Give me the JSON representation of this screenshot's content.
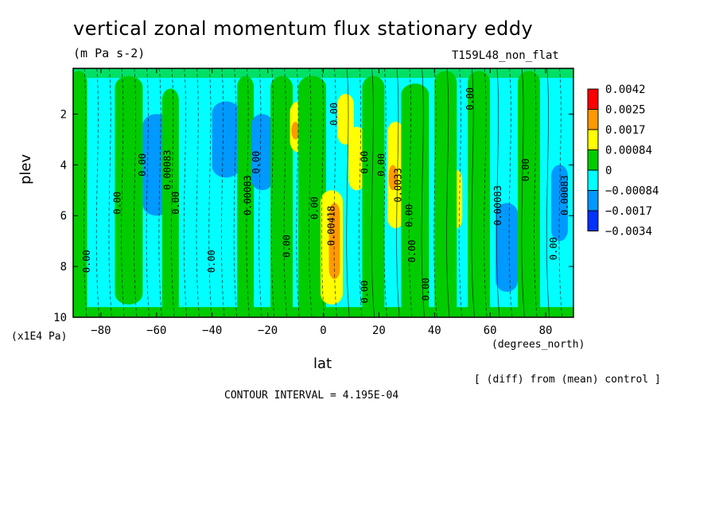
{
  "header": {
    "title": "vertical zonal momentum flux stationary eddy",
    "units": "(m Pa s-2)",
    "run_label": "T159L48_non_flat"
  },
  "footer": {
    "diff_note": "[ (diff) from (mean) control ]",
    "contour_interval": "CONTOUR INTERVAL = 4.195E-04"
  },
  "chart_data": {
    "type": "heatmap",
    "title": "vertical zonal momentum flux stationary eddy",
    "xlabel": "lat",
    "xunit": "(degrees_north)",
    "ylabel": "plev",
    "yunit": "(x1E4 Pa)",
    "xlim": [
      -90,
      90
    ],
    "ylim": [
      10,
      0.2
    ],
    "x_ticks": [
      -80,
      -60,
      -40,
      -20,
      0,
      20,
      40,
      60,
      80
    ],
    "x_tick_labels": [
      "−80",
      "−60",
      "−40",
      "−20",
      "0",
      "20",
      "40",
      "60",
      "80"
    ],
    "y_ticks": [
      2,
      4,
      6,
      8,
      10
    ],
    "y_tick_labels": [
      "2",
      "4",
      "6",
      "8",
      "10"
    ],
    "legend": {
      "position": "right",
      "labels": [
        "0.0042",
        "0.0025",
        "0.0017",
        "0.00084",
        "0",
        "−0.00084",
        "−0.0017",
        "−0.0034"
      ],
      "colors": [
        "#ff0000",
        "#ff9900",
        "#ffff00",
        "#00cc00",
        "#00ffff",
        "#0099ff",
        "#0033ff"
      ]
    },
    "contour_labels": [
      {
        "text": "0.00",
        "lat": -84,
        "p": 7.8
      },
      {
        "text": "0.00",
        "lat": -73,
        "p": 5.5
      },
      {
        "text": "0.00",
        "lat": -64,
        "p": 4.0
      },
      {
        "text": "0.00083",
        "lat": -55,
        "p": 4.2
      },
      {
        "text": "0.00",
        "lat": -52,
        "p": 5.5
      },
      {
        "text": "0.00",
        "lat": -39,
        "p": 7.8
      },
      {
        "text": "0.00083",
        "lat": -26,
        "p": 5.2
      },
      {
        "text": "0.00",
        "lat": -23,
        "p": 3.9
      },
      {
        "text": "0.00",
        "lat": -12,
        "p": 7.2
      },
      {
        "text": "0.00",
        "lat": -2,
        "p": 5.7
      },
      {
        "text": "0.00418",
        "lat": 4,
        "p": 6.4
      },
      {
        "text": "0.00",
        "lat": 5,
        "p": 2.0
      },
      {
        "text": "0.00",
        "lat": 16,
        "p": 3.9
      },
      {
        "text": "0.00",
        "lat": 16,
        "p": 9.0
      },
      {
        "text": "0.00",
        "lat": 22,
        "p": 4.0
      },
      {
        "text": "0.0033",
        "lat": 28,
        "p": 4.8
      },
      {
        "text": "0.00",
        "lat": 32,
        "p": 6.0
      },
      {
        "text": "0.00",
        "lat": 33,
        "p": 7.4
      },
      {
        "text": "0.00",
        "lat": 38,
        "p": 8.9
      },
      {
        "text": "0.00",
        "lat": 54,
        "p": 1.4
      },
      {
        "text": "0.00083",
        "lat": 64,
        "p": 5.6
      },
      {
        "text": "0.00",
        "lat": 74,
        "p": 4.2
      },
      {
        "text": "0.00",
        "lat": 84,
        "p": 7.3
      },
      {
        "text": "0.00083",
        "lat": 88,
        "p": 5.2
      }
    ]
  }
}
